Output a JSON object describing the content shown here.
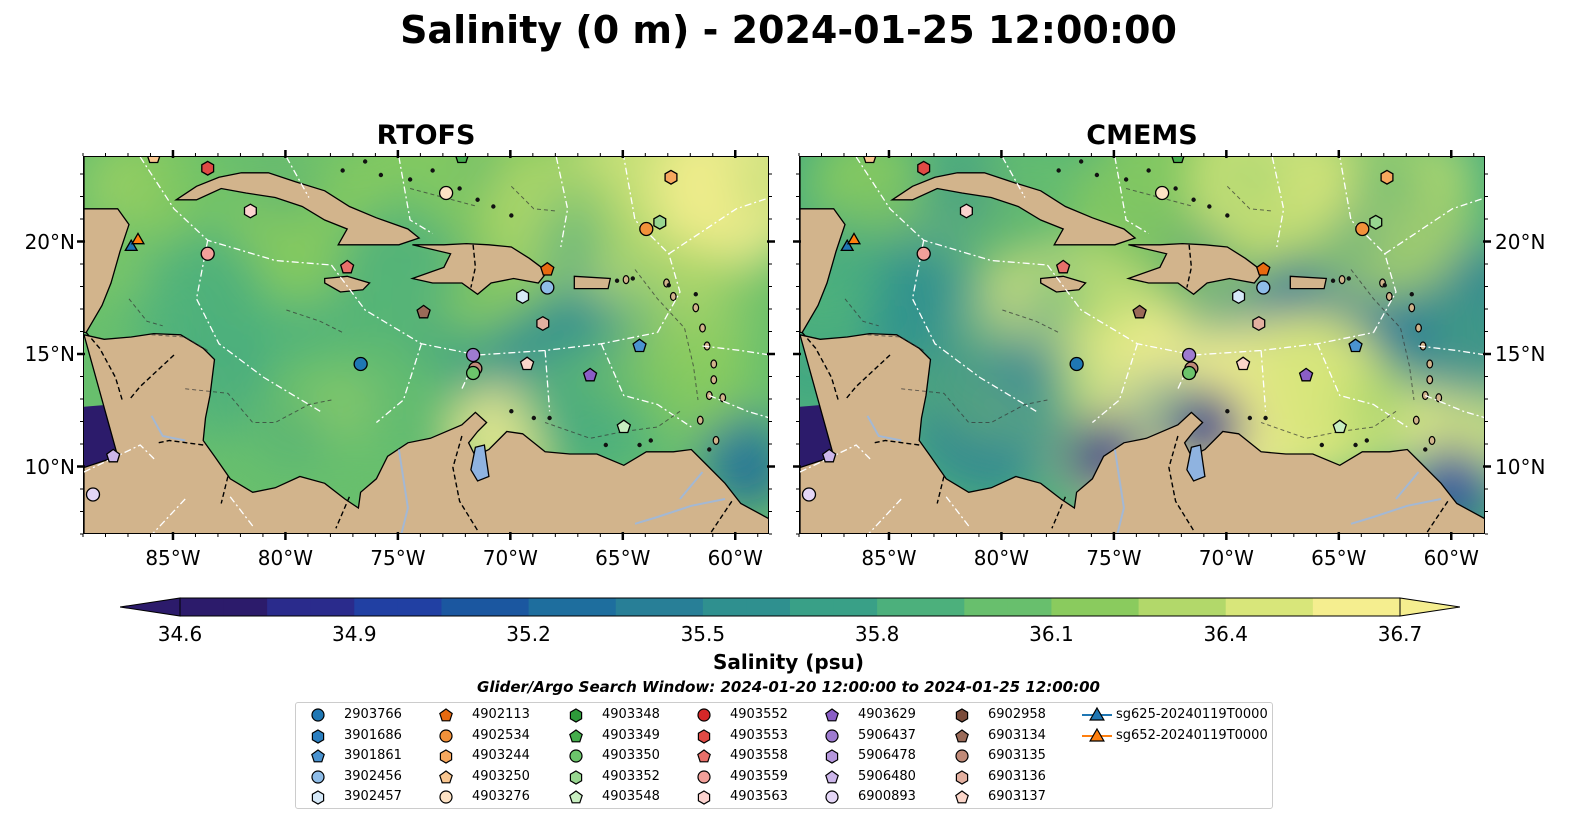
{
  "title": "Salinity (0 m) - 2024-01-25 12:00:00",
  "panels": [
    {
      "title": "RTOFS",
      "variant": "rtofs"
    },
    {
      "title": "CMEMS",
      "variant": "cmems"
    }
  ],
  "axes": {
    "lon_labels": [
      "85°W",
      "80°W",
      "75°W",
      "70°W",
      "65°W",
      "60°W"
    ],
    "lon_values": [
      -85,
      -80,
      -75,
      -70,
      -65,
      -60
    ],
    "lat_labels": [
      "20°N",
      "15°N",
      "10°N"
    ],
    "lat_values": [
      20,
      15,
      10
    ],
    "lon_range": [
      -89,
      -58.5
    ],
    "lat_range": [
      7,
      23.8
    ]
  },
  "colorbar": {
    "title": "Salinity (psu)",
    "ticks": [
      "34.6",
      "34.9",
      "35.2",
      "35.5",
      "35.8",
      "36.1",
      "36.4",
      "36.7"
    ],
    "range": [
      34.6,
      36.7
    ],
    "colors": [
      "#2c1b6b",
      "#2a2b8c",
      "#2140a3",
      "#1b57a0",
      "#1e6e9e",
      "#287f97",
      "#2f908f",
      "#39a087",
      "#4cb07c",
      "#68bf6d",
      "#8acb5e",
      "#b2d86a",
      "#d8e67a",
      "#f5ee8f"
    ]
  },
  "search_window": "Glider/Argo Search Window: 2024-01-20 12:00:00 to 2024-01-25 12:00:00",
  "colors": {
    "land": "#d2b48c",
    "lake": "#8fb3e0",
    "river": "#a3b8d4"
  },
  "legend": [
    {
      "label": "2903766",
      "marker": "circle",
      "color": "#1f77b4"
    },
    {
      "label": "3901686",
      "marker": "hexagon",
      "color": "#2b7fc0"
    },
    {
      "label": "3901861",
      "marker": "pentagon",
      "color": "#4a93d0"
    },
    {
      "label": "3902456",
      "marker": "circle",
      "color": "#8fbde8"
    },
    {
      "label": "3902457",
      "marker": "hexagon",
      "color": "#d6e9f8"
    },
    {
      "label": "4902113",
      "marker": "pentagon",
      "color": "#e86a10"
    },
    {
      "label": "4902534",
      "marker": "circle",
      "color": "#f2913a"
    },
    {
      "label": "4903244",
      "marker": "hexagon",
      "color": "#f6a85e"
    },
    {
      "label": "4903250",
      "marker": "pentagon",
      "color": "#f9c690"
    },
    {
      "label": "4903276",
      "marker": "circle",
      "color": "#fde2c4"
    },
    {
      "label": "4903348",
      "marker": "hexagon",
      "color": "#2e9a3a"
    },
    {
      "label": "4903349",
      "marker": "pentagon",
      "color": "#45ad4c"
    },
    {
      "label": "4903350",
      "marker": "circle",
      "color": "#6cc46b"
    },
    {
      "label": "4903352",
      "marker": "hexagon",
      "color": "#98d690"
    },
    {
      "label": "4903548",
      "marker": "pentagon",
      "color": "#c8eec0"
    },
    {
      "label": "4903552",
      "marker": "circle",
      "color": "#d62728"
    },
    {
      "label": "4903553",
      "marker": "hexagon",
      "color": "#df4a45"
    },
    {
      "label": "4903558",
      "marker": "pentagon",
      "color": "#e8706a"
    },
    {
      "label": "4903559",
      "marker": "circle",
      "color": "#f2a09a"
    },
    {
      "label": "4903563",
      "marker": "hexagon",
      "color": "#fbd3cf"
    },
    {
      "label": "4903629",
      "marker": "pentagon",
      "color": "#8a5ec6"
    },
    {
      "label": "5906437",
      "marker": "circle",
      "color": "#9e7bd0"
    },
    {
      "label": "5906478",
      "marker": "hexagon",
      "color": "#b597dc"
    },
    {
      "label": "5906480",
      "marker": "pentagon",
      "color": "#ccb6ea"
    },
    {
      "label": "6900893",
      "marker": "circle",
      "color": "#e4d6f6"
    },
    {
      "label": "6902958",
      "marker": "hexagon",
      "color": "#7a4b3a"
    },
    {
      "label": "6903134",
      "marker": "pentagon",
      "color": "#9a6a58"
    },
    {
      "label": "6903135",
      "marker": "circle",
      "color": "#c08a78"
    },
    {
      "label": "6903136",
      "marker": "hexagon",
      "color": "#e3b0a0"
    },
    {
      "label": "6903137",
      "marker": "pentagon",
      "color": "#fbd6ca"
    },
    {
      "label": "sg625-20240119T0000",
      "marker": "triangle-line",
      "color": "#1f77b4"
    },
    {
      "label": "sg652-20240119T0000",
      "marker": "triangle-line",
      "color": "#ff7f0e"
    }
  ],
  "floats": [
    {
      "id": "4903276",
      "marker": "circle",
      "color": "#fde2c4",
      "lon": -72.9,
      "lat": 22.2
    },
    {
      "id": "4903349",
      "marker": "pentagon",
      "color": "#45ad4c",
      "lon": -72.2,
      "lat": 23.8
    },
    {
      "id": "4903250",
      "marker": "pentagon",
      "color": "#f9c690",
      "lon": -85.9,
      "lat": 23.8
    },
    {
      "id": "4903553",
      "marker": "hexagon",
      "color": "#df4a45",
      "lon": -83.5,
      "lat": 23.3
    },
    {
      "id": "4903563",
      "marker": "hexagon",
      "color": "#fbd3cf",
      "lon": -81.6,
      "lat": 21.4
    },
    {
      "id": "4903559",
      "marker": "circle",
      "color": "#f2a09a",
      "lon": -83.5,
      "lat": 19.5
    },
    {
      "id": "4903558",
      "marker": "pentagon",
      "color": "#e8706a",
      "lon": -77.3,
      "lat": 18.9
    },
    {
      "id": "4903244",
      "marker": "hexagon",
      "color": "#f6a85e",
      "lon": -62.9,
      "lat": 22.9
    },
    {
      "id": "4903352",
      "marker": "hexagon",
      "color": "#98d690",
      "lon": -63.4,
      "lat": 20.9
    },
    {
      "id": "4902534",
      "marker": "circle",
      "color": "#f2913a",
      "lon": -64.0,
      "lat": 20.6
    },
    {
      "id": "4902113",
      "marker": "pentagon",
      "color": "#e86a10",
      "lon": -68.4,
      "lat": 18.8
    },
    {
      "id": "3902456",
      "marker": "circle",
      "color": "#8fbde8",
      "lon": -68.4,
      "lat": 18.0
    },
    {
      "id": "3902457",
      "marker": "hexagon",
      "color": "#d6e9f8",
      "lon": -69.5,
      "lat": 17.6
    },
    {
      "id": "6903134",
      "marker": "pentagon",
      "color": "#9a6a58",
      "lon": -73.9,
      "lat": 16.9
    },
    {
      "id": "6903136",
      "marker": "hexagon",
      "color": "#e3b0a0",
      "lon": -68.6,
      "lat": 16.4
    },
    {
      "id": "3901861",
      "marker": "pentagon",
      "color": "#4a93d0",
      "lon": -64.3,
      "lat": 15.4
    },
    {
      "id": "5906437",
      "marker": "circle",
      "color": "#9e7bd0",
      "lon": -71.7,
      "lat": 15.0
    },
    {
      "id": "6903135",
      "marker": "circle",
      "color": "#c08a78",
      "lon": -71.6,
      "lat": 14.4
    },
    {
      "id": "4903350",
      "marker": "circle",
      "color": "#6cc46b",
      "lon": -71.7,
      "lat": 14.2
    },
    {
      "id": "2903766",
      "marker": "circle",
      "color": "#1f77b4",
      "lon": -76.7,
      "lat": 14.6
    },
    {
      "id": "6903137",
      "marker": "pentagon",
      "color": "#fbd6ca",
      "lon": -69.3,
      "lat": 14.6
    },
    {
      "id": "4903629",
      "marker": "pentagon",
      "color": "#8a5ec6",
      "lon": -66.5,
      "lat": 14.1
    },
    {
      "id": "4903548",
      "marker": "pentagon",
      "color": "#c8eec0",
      "lon": -65.0,
      "lat": 11.8
    },
    {
      "id": "5906480",
      "marker": "pentagon",
      "color": "#ccb6ea",
      "lon": -87.7,
      "lat": 10.5
    },
    {
      "id": "6900893",
      "marker": "circle",
      "color": "#e4d6f6",
      "lon": -88.6,
      "lat": 8.8
    },
    {
      "id": "sg625-20240119T0000",
      "marker": "triangle",
      "color": "#1f77b4",
      "lon": -86.9,
      "lat": 19.8
    },
    {
      "id": "sg652-20240119T0000",
      "marker": "triangle",
      "color": "#ff7f0e",
      "lon": -86.6,
      "lat": 20.1
    }
  ]
}
